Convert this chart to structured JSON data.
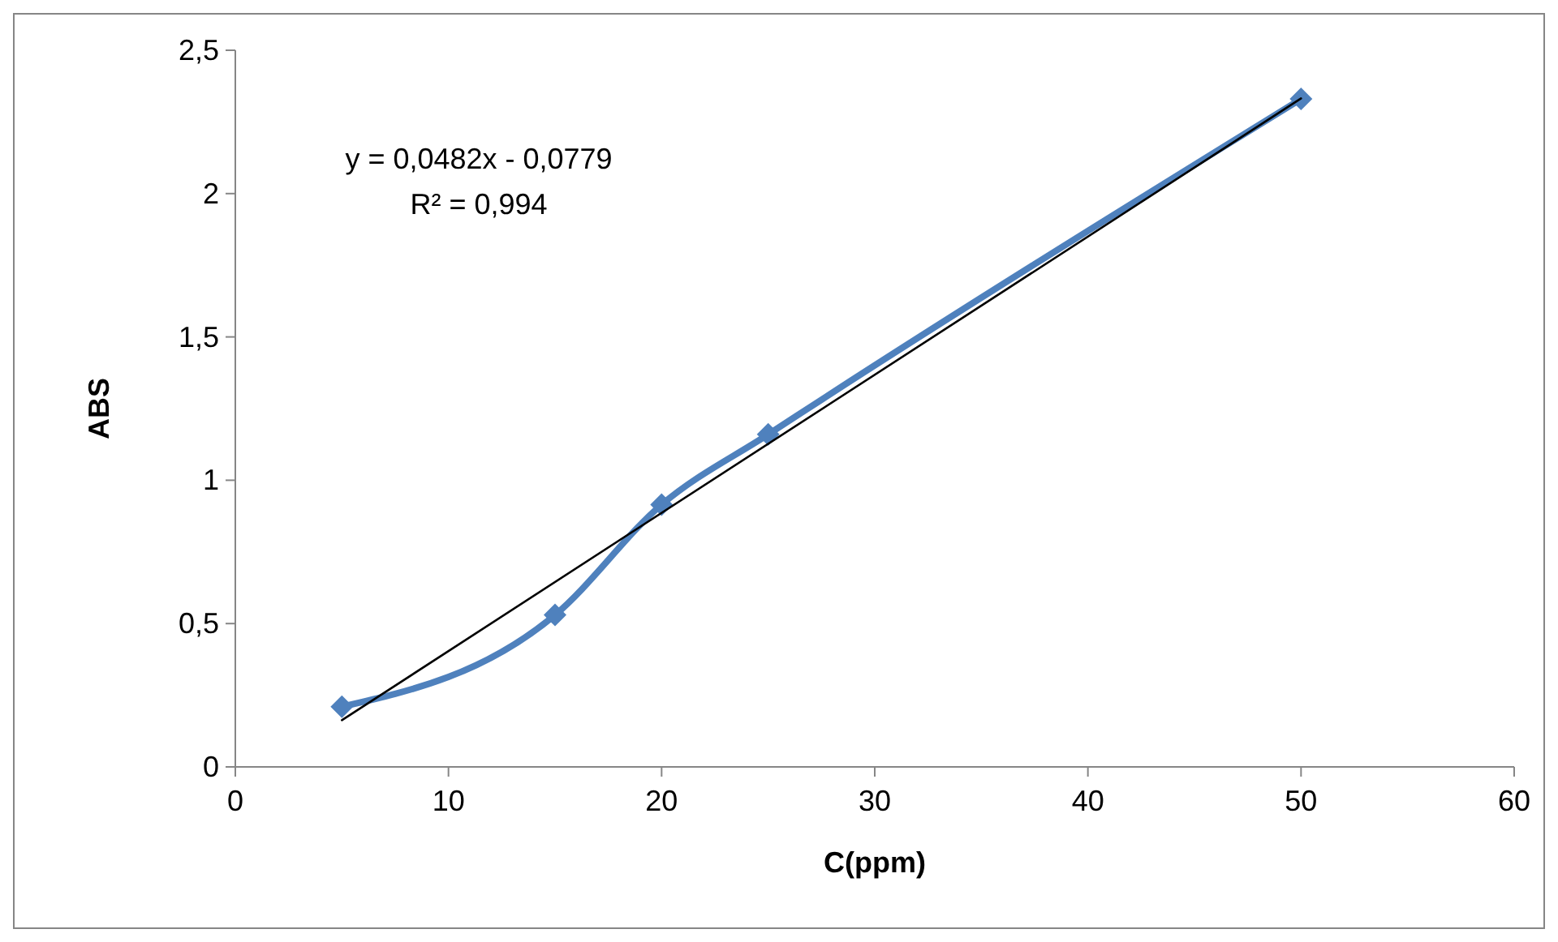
{
  "chart_data": {
    "type": "line",
    "xlabel": "C(ppm)",
    "ylabel": "ABS",
    "xlim": [
      0,
      60
    ],
    "xticks": [
      0,
      10,
      20,
      30,
      40,
      50,
      60
    ],
    "ylim": [
      0,
      2.5
    ],
    "yticks": [
      0,
      {
        "value": 0.5,
        "label": "0,5"
      },
      1,
      {
        "value": 1.5,
        "label": "1,5"
      },
      2,
      {
        "value": 2.5,
        "label": "2,5"
      }
    ],
    "grid": false,
    "series": [
      {
        "type": "line",
        "color": "#4f81bd",
        "marker": "diamond",
        "x": [
          5,
          15,
          20,
          25,
          50
        ],
        "values": [
          0.21,
          0.53,
          0.915,
          1.16,
          2.33
        ]
      },
      {
        "type": "line",
        "color": "#000000",
        "marker": "none",
        "x": [
          5,
          50
        ],
        "values": [
          0.163,
          2.332
        ]
      }
    ],
    "annotations": [
      "y = 0,0482x - 0,0779",
      "R² = 0,994"
    ]
  }
}
